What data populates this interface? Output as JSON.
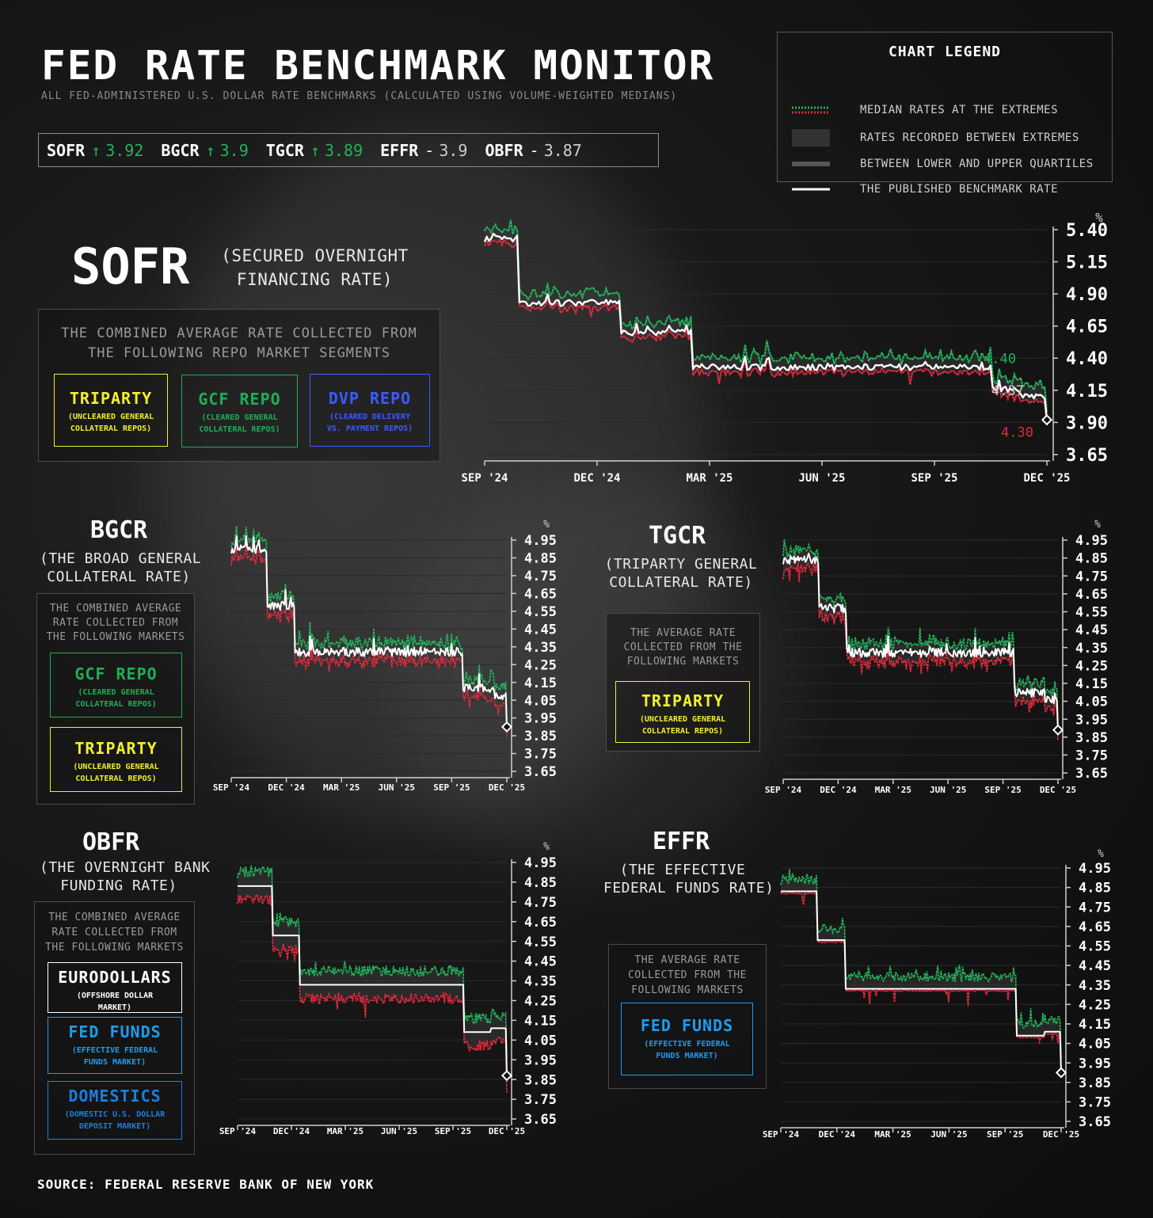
{
  "header": {
    "title": "FED RATE BENCHMARK MONITOR",
    "subtitle": "ALL FED-ADMINISTERED U.S. DOLLAR RATE BENCHMARKS (CALCULATED USING VOLUME-WEIGHTED MEDIANS)"
  },
  "ticker": [
    {
      "name": "SOFR",
      "arrow": "↑",
      "value": "3.92",
      "color": "#22b25a"
    },
    {
      "name": "BGCR",
      "arrow": "↑",
      "value": "3.9",
      "color": "#22b25a"
    },
    {
      "name": "TGCR",
      "arrow": "↑",
      "value": "3.89",
      "color": "#22b25a"
    },
    {
      "name": "EFFR",
      "arrow": "-",
      "value": "3.9",
      "color": "#cfcfcf"
    },
    {
      "name": "OBFR",
      "arrow": "-",
      "value": "3.87",
      "color": "#cfcfcf"
    }
  ],
  "legend": {
    "title": "CHART LEGEND",
    "items": [
      "MEDIAN RATES AT THE EXTREMES",
      "RATES RECORDED BETWEEN EXTREMES",
      "BETWEEN LOWER AND UPPER QUARTILES",
      "THE PUBLISHED BENCHMARK RATE"
    ]
  },
  "colors": {
    "upper": "#22b25a",
    "lower": "#e0283c",
    "line": "#ffffff",
    "triparty": "#f2ef2b",
    "gcf": "#1fae55",
    "dvp": "#3a5bff",
    "fedfunds": "#1c9df0",
    "domestics": "#1a7fe0"
  },
  "panels": {
    "sofr": {
      "name": "SOFR",
      "full": [
        "(SECURED OVERNIGHT",
        "FINANCING RATE)"
      ],
      "desc": [
        "THE COMBINED AVERAGE RATE COLLECTED FROM",
        "THE FOLLOWING REPO MARKET SEGMENTS"
      ],
      "markets": [
        {
          "name": "TRIPARTY",
          "desc": [
            "(UNCLEARED GENERAL",
            "COLLATERAL REPOS)"
          ],
          "icon": "triparty"
        },
        {
          "name": "GCF REPO",
          "desc": [
            "(CLEARED GENERAL",
            "COLLATERAL REPOS)"
          ],
          "icon": "gcf"
        },
        {
          "name": "DVP REPO",
          "desc": [
            "(CLEARED DELIVERY",
            "VS. PAYMENT REPOS)"
          ],
          "icon": "dvp"
        }
      ]
    },
    "bgcr": {
      "name": "BGCR",
      "full": [
        "(THE BROAD GENERAL",
        "COLLATERAL RATE)"
      ],
      "desc": [
        "THE COMBINED AVERAGE",
        "RATE COLLECTED FROM",
        "THE FOLLOWING MARKETS"
      ],
      "markets": [
        {
          "name": "GCF REPO",
          "desc": [
            "(CLEARED GENERAL",
            "COLLATERAL REPOS)"
          ],
          "icon": "gcf"
        },
        {
          "name": "TRIPARTY",
          "desc": [
            "(UNCLEARED GENERAL",
            "COLLATERAL REPOS)"
          ],
          "icon": "triparty"
        }
      ]
    },
    "tgcr": {
      "name": "TGCR",
      "full": [
        "(TRIPARTY GENERAL",
        "COLLATERAL RATE)"
      ],
      "desc": [
        "THE AVERAGE RATE",
        "COLLECTED FROM THE",
        "FOLLOWING MARKETS"
      ],
      "markets": [
        {
          "name": "TRIPARTY",
          "desc": [
            "(UNCLEARED GENERAL",
            "COLLATERAL REPOS)"
          ],
          "icon": "triparty"
        }
      ]
    },
    "obfr": {
      "name": "OBFR",
      "full": [
        "(THE OVERNIGHT BANK",
        "FUNDING RATE)"
      ],
      "desc": [
        "THE COMBINED AVERAGE",
        "RATE COLLECTED FROM",
        "THE FOLLOWING MARKETS"
      ],
      "markets": [
        {
          "name": "EURODOLLARS",
          "desc": [
            "(OFFSHORE DOLLAR",
            "MARKET)"
          ],
          "icon": "eurodollars"
        },
        {
          "name": "FED FUNDS",
          "desc": [
            "(EFFECTIVE FEDERAL",
            "FUNDS MARKET)"
          ],
          "icon": "fedfunds"
        },
        {
          "name": "DOMESTICS",
          "desc": [
            "(DOMESTIC U.S. DOLLAR",
            "DEPOSIT MARKET)"
          ],
          "icon": "domestics"
        }
      ]
    },
    "effr": {
      "name": "EFFR",
      "full": [
        "(THE EFFECTIVE",
        "FEDERAL FUNDS RATE)"
      ],
      "desc": [
        "THE AVERAGE RATE",
        "COLLECTED FROM THE",
        "FOLLOWING MARKETS"
      ],
      "markets": [
        {
          "name": "FED FUNDS",
          "desc": [
            "(EFFECTIVE FEDERAL",
            "FUNDS MARKET)"
          ],
          "icon": "fedfunds"
        }
      ]
    }
  },
  "source": "SOURCE: FEDERAL RESERVE BANK OF NEW YORK",
  "chart_data": [
    {
      "id": "sofr",
      "type": "line",
      "unit": "%",
      "xticks": [
        "SEP '24",
        "DEC '24",
        "MAR '25",
        "JUN '25",
        "SEP '25",
        "DEC '25"
      ],
      "yticks": [
        "5.40",
        "5.15",
        "4.90",
        "4.65",
        "4.40",
        "4.15",
        "3.90",
        "3.65"
      ],
      "ylim": [
        3.65,
        5.4
      ],
      "annotations": [
        {
          "text": "4.40",
          "kind": "upper"
        },
        {
          "text": "4.37",
          "kind": "line"
        },
        {
          "text": "4.30",
          "kind": "lower"
        }
      ],
      "steps": [
        {
          "end": 0.06,
          "base": 5.33
        },
        {
          "end": 0.24,
          "base": 4.83
        },
        {
          "end": 0.37,
          "base": 4.6
        },
        {
          "end": 0.9,
          "base": 4.33
        },
        {
          "end": 0.95,
          "base": 4.16
        },
        {
          "end": 1.0,
          "base": 4.1
        }
      ],
      "last": 3.92,
      "upper_spread": 0.07,
      "lower_spread": 0.04,
      "series": [
        {
          "name": "upper",
          "kind": "upper"
        },
        {
          "name": "line",
          "kind": "line"
        },
        {
          "name": "lower",
          "kind": "lower"
        }
      ]
    },
    {
      "id": "bgcr",
      "type": "line",
      "unit": "%",
      "xticks": [
        "SEP '24",
        "DEC '24",
        "MAR '25",
        "JUN '25",
        "SEP '25",
        "DEC '25"
      ],
      "yticks": [
        "4.95",
        "4.85",
        "4.75",
        "4.65",
        "4.55",
        "4.45",
        "4.35",
        "4.25",
        "4.15",
        "4.05",
        "3.95",
        "3.85",
        "3.75",
        "3.65"
      ],
      "ylim": [
        3.65,
        4.95
      ],
      "steps": [
        {
          "end": 0.13,
          "base": 4.9
        },
        {
          "end": 0.23,
          "base": 4.58
        },
        {
          "end": 0.84,
          "base": 4.32
        },
        {
          "end": 0.95,
          "base": 4.12
        },
        {
          "end": 1.0,
          "base": 4.08
        }
      ],
      "last": 3.9,
      "upper_spread": 0.05,
      "lower_spread": 0.05,
      "series": [
        {
          "name": "upper",
          "kind": "upper"
        },
        {
          "name": "line",
          "kind": "line"
        },
        {
          "name": "lower",
          "kind": "lower"
        }
      ]
    },
    {
      "id": "tgcr",
      "type": "line",
      "unit": "%",
      "xticks": [
        "SEP '24",
        "DEC '24",
        "MAR '25",
        "JUN '25",
        "SEP '25",
        "DEC '25"
      ],
      "yticks": [
        "4.95",
        "4.85",
        "4.75",
        "4.65",
        "4.55",
        "4.45",
        "4.35",
        "4.25",
        "4.15",
        "4.05",
        "3.95",
        "3.85",
        "3.75",
        "3.65"
      ],
      "ylim": [
        3.65,
        4.95
      ],
      "steps": [
        {
          "end": 0.13,
          "base": 4.84
        },
        {
          "end": 0.23,
          "base": 4.57
        },
        {
          "end": 0.84,
          "base": 4.32
        },
        {
          "end": 0.95,
          "base": 4.1
        },
        {
          "end": 1.0,
          "base": 4.06
        }
      ],
      "last": 3.89,
      "upper_spread": 0.05,
      "lower_spread": 0.05,
      "series": [
        {
          "name": "upper",
          "kind": "upper"
        },
        {
          "name": "line",
          "kind": "line"
        },
        {
          "name": "lower",
          "kind": "lower"
        }
      ]
    },
    {
      "id": "obfr",
      "type": "line",
      "unit": "%",
      "xticks": [
        "SEP '24",
        "DEC '24",
        "MAR '25",
        "JUN '25",
        "SEP '25",
        "DEC '25"
      ],
      "yticks": [
        "4.95",
        "4.85",
        "4.75",
        "4.65",
        "4.55",
        "4.45",
        "4.35",
        "4.25",
        "4.15",
        "4.05",
        "3.95",
        "3.85",
        "3.75",
        "3.65"
      ],
      "ylim": [
        3.65,
        4.95
      ],
      "steps": [
        {
          "end": 0.13,
          "base": 4.83
        },
        {
          "end": 0.23,
          "base": 4.58
        },
        {
          "end": 0.84,
          "base": 4.33
        },
        {
          "end": 0.94,
          "base": 4.09
        },
        {
          "end": 1.0,
          "base": 4.11
        }
      ],
      "last": 3.87,
      "upper_spread": 0.07,
      "lower_spread": 0.07,
      "flat": true,
      "series": [
        {
          "name": "upper",
          "kind": "upper"
        },
        {
          "name": "line",
          "kind": "line"
        },
        {
          "name": "lower",
          "kind": "lower"
        }
      ]
    },
    {
      "id": "effr",
      "type": "line",
      "unit": "%",
      "xticks": [
        "SEP '24",
        "DEC '24",
        "MAR '25",
        "JUN '25",
        "SEP '25",
        "DEC '25"
      ],
      "yticks": [
        "4.95",
        "4.85",
        "4.75",
        "4.65",
        "4.55",
        "4.45",
        "4.35",
        "4.25",
        "4.15",
        "4.05",
        "3.95",
        "3.85",
        "3.75",
        "3.65"
      ],
      "ylim": [
        3.65,
        4.95
      ],
      "steps": [
        {
          "end": 0.13,
          "base": 4.83
        },
        {
          "end": 0.23,
          "base": 4.58
        },
        {
          "end": 0.84,
          "base": 4.33
        },
        {
          "end": 0.94,
          "base": 4.09
        },
        {
          "end": 1.0,
          "base": 4.11
        }
      ],
      "last": 3.9,
      "upper_spread": 0.06,
      "lower_spread": 0.01,
      "flat": true,
      "series": [
        {
          "name": "upper",
          "kind": "upper"
        },
        {
          "name": "line",
          "kind": "line"
        },
        {
          "name": "lower",
          "kind": "lower"
        }
      ]
    }
  ]
}
